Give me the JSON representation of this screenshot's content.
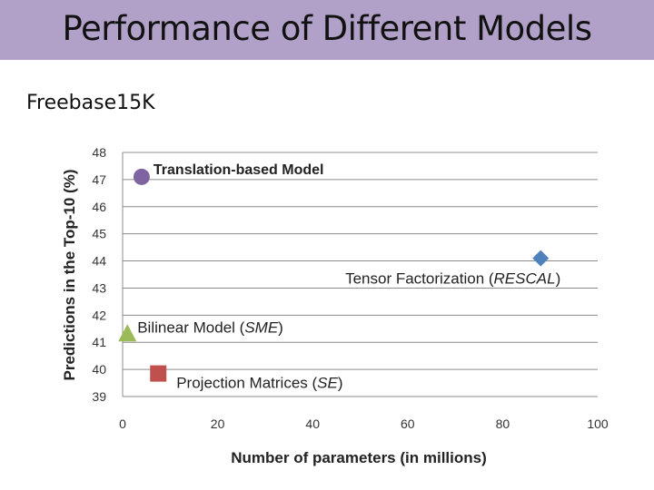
{
  "slide": {
    "title": "Performance of Different Models",
    "subtitle": "Freebase15K"
  },
  "chart_data": {
    "type": "scatter",
    "title": "",
    "xlabel": "Number of parameters (in millions)",
    "ylabel": "Predictions in the Top-10 (%)",
    "xlim": [
      0,
      100
    ],
    "ylim": [
      39,
      48
    ],
    "xticks": [
      0,
      20,
      40,
      60,
      80,
      100
    ],
    "yticks": [
      39,
      40,
      41,
      42,
      43,
      44,
      45,
      46,
      47,
      48
    ],
    "grid": "horizontal",
    "points": [
      {
        "name": "translation",
        "label": "Translation-based Model",
        "label_model": "",
        "label_close": "",
        "x": 4,
        "y": 47.1,
        "marker": "circle",
        "color": "#8064a2",
        "bold": true,
        "label_side": "right-up"
      },
      {
        "name": "rescal",
        "label": "Tensor Factorization (",
        "label_model": "RESCAL",
        "label_close": ")",
        "x": 88,
        "y": 44.1,
        "marker": "diamond",
        "color": "#4f81bd",
        "bold": false,
        "label_side": "below-left"
      },
      {
        "name": "sme",
        "label": "Bilinear Model (",
        "label_model": "SME",
        "label_close": ")",
        "x": 1,
        "y": 41.3,
        "marker": "triangle",
        "color": "#9bbb59",
        "bold": false,
        "label_side": "right-up"
      },
      {
        "name": "se",
        "label": "Projection Matrices (",
        "label_model": "SE",
        "label_close": ")",
        "x": 7.5,
        "y": 39.85,
        "marker": "square",
        "color": "#c0504d",
        "bold": false,
        "label_side": "right-down"
      }
    ]
  }
}
